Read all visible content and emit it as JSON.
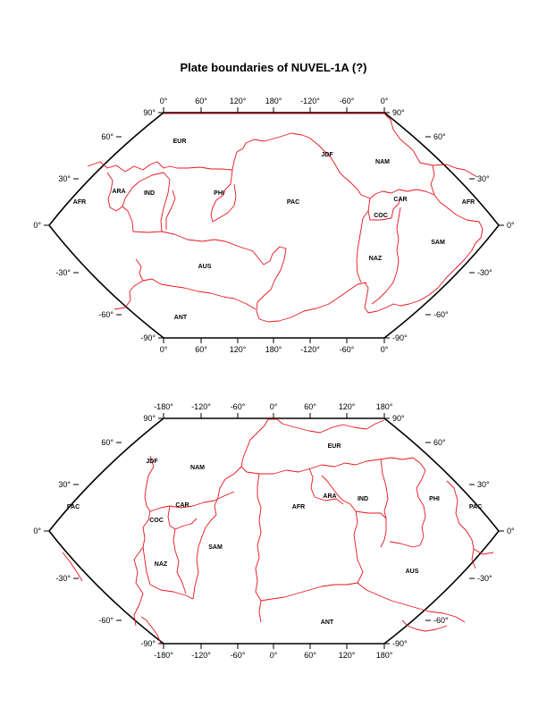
{
  "title": "Plate boundaries of NUVEL-1A (?)",
  "colors": {
    "boundary": "#e8141c",
    "frame": "#000000"
  },
  "map_top": {
    "top_lon_labels": [
      "0°",
      "60°",
      "120°",
      "180°",
      "-120°",
      "-60°",
      "0°"
    ],
    "bottom_lon_labels": [
      "0°",
      "60°",
      "120°",
      "180°",
      "-120°",
      "-60°",
      "0°"
    ],
    "left_lat_labels": [
      "90°",
      "60°",
      "30°",
      "0°",
      "-30°",
      "-60°",
      "-90°"
    ],
    "right_lat_labels": [
      "90°",
      "60°",
      "30°",
      "0°",
      "-30°",
      "-60°",
      "-90°"
    ],
    "plates": [
      "EUR",
      "JDF",
      "NAM",
      "ARA",
      "IND",
      "PHI",
      "PAC",
      "AFR",
      "AFR",
      "CAR",
      "COC",
      "SAM",
      "NAZ",
      "AUS",
      "ANT"
    ]
  },
  "map_bottom": {
    "top_lon_labels": [
      "-180°",
      "-120°",
      "-60°",
      "0°",
      "60°",
      "120°",
      "180°"
    ],
    "bottom_lon_labels": [
      "-180°",
      "-120°",
      "-60°",
      "0°",
      "60°",
      "120°",
      "180°"
    ],
    "left_lat_labels": [
      "90°",
      "60°",
      "30°",
      "0°",
      "-30°",
      "-60°",
      "-90°"
    ],
    "right_lat_labels": [
      "90°",
      "60°",
      "30°",
      "0°",
      "-30°",
      "-60°",
      "-90°"
    ],
    "plates": [
      "EUR",
      "JDF",
      "NAM",
      "ARA",
      "IND",
      "PHI",
      "PAC",
      "PAC",
      "CAR",
      "COC",
      "AFR",
      "SAM",
      "NAZ",
      "AUS",
      "ANT"
    ]
  }
}
